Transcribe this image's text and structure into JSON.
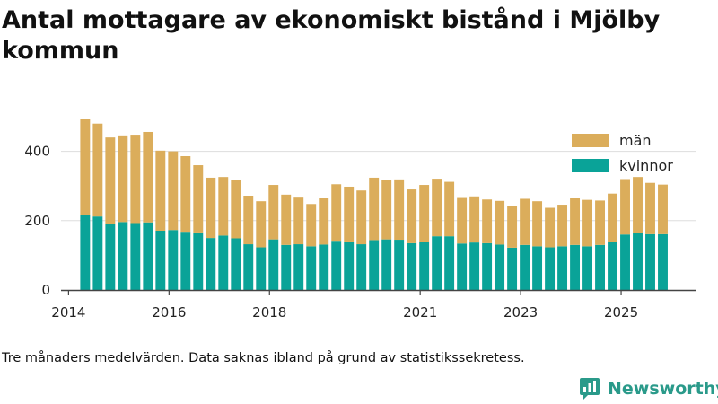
{
  "title": "Antal mottagare av ekonomiskt bistånd i Mjölby kommun",
  "footnote": "Tre månaders medelvärden. Data saknas ibland på grund av statistikssekretess.",
  "brand": {
    "name": "Newsworthy"
  },
  "colors": {
    "men": "#dbad5b",
    "women": "#0aa398",
    "grid": "#dddddd",
    "axis": "#444444",
    "brand": "#2a9a8a"
  },
  "chart_data": {
    "type": "bar",
    "stacked": true,
    "title": "Antal mottagare av ekonomiskt bistånd i Mjölby kommun",
    "xlabel": "",
    "ylabel": "",
    "ylim": [
      0,
      500
    ],
    "yticks": [
      0,
      200,
      400
    ],
    "xlim": [
      2013.85,
      2026.5
    ],
    "xticks": [
      2014,
      2016,
      2018,
      2021,
      2023,
      2025
    ],
    "x": [
      2014.33,
      2014.58,
      2014.83,
      2015.08,
      2015.33,
      2015.58,
      2015.83,
      2016.08,
      2016.33,
      2016.58,
      2016.83,
      2017.08,
      2017.33,
      2017.58,
      2017.83,
      2018.08,
      2018.33,
      2018.58,
      2018.83,
      2019.08,
      2019.33,
      2019.58,
      2019.83,
      2020.08,
      2020.33,
      2020.58,
      2020.83,
      2021.08,
      2021.33,
      2021.58,
      2021.83,
      2022.08,
      2022.33,
      2022.58,
      2022.83,
      2023.08,
      2023.33,
      2023.58,
      2023.83,
      2024.08,
      2024.33,
      2024.58,
      2024.83,
      2025.08,
      2025.33,
      2025.58,
      2025.83
    ],
    "legend": [
      "män",
      "kvinnor"
    ],
    "legend_position": "top-right",
    "series": [
      {
        "name": "kvinnor",
        "values": [
          217,
          212,
          190,
          196,
          193,
          195,
          171,
          173,
          168,
          166,
          150,
          157,
          149,
          132,
          123,
          146,
          130,
          132,
          126,
          131,
          142,
          140,
          132,
          144,
          146,
          145,
          135,
          139,
          155,
          155,
          134,
          137,
          135,
          131,
          122,
          130,
          126,
          123,
          126,
          130,
          126,
          130,
          138,
          160,
          165,
          161,
          161
        ]
      },
      {
        "name": "män",
        "values": [
          277,
          268,
          250,
          250,
          255,
          261,
          231,
          227,
          218,
          194,
          174,
          169,
          168,
          140,
          133,
          157,
          145,
          137,
          122,
          135,
          163,
          158,
          155,
          180,
          172,
          174,
          155,
          164,
          166,
          157,
          134,
          133,
          126,
          126,
          121,
          133,
          130,
          114,
          120,
          136,
          134,
          128,
          140,
          160,
          161,
          148,
          143
        ]
      }
    ]
  }
}
